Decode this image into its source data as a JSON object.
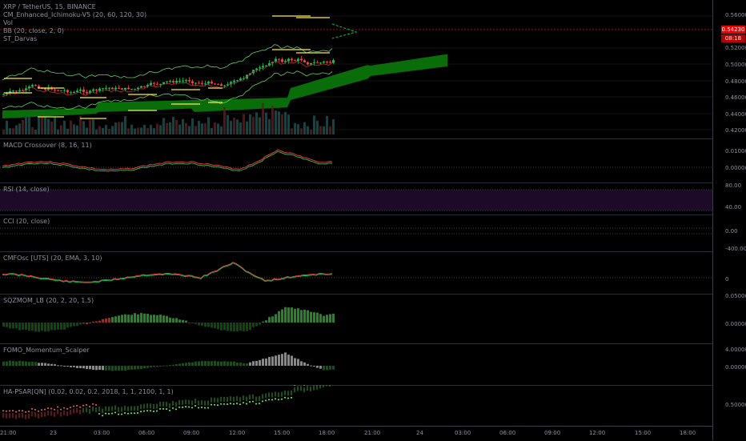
{
  "header": {
    "symbol_line": "XRP / TetherUS, 15, BINANCE",
    "ind_ichimoku": "CM_Enhanced_Ichimoku-V5 (20, 60, 120, 30)",
    "ind_vol": "Vol",
    "ind_bb": "BB (20, close, 2, 0)",
    "ind_darvas": "ST_Darvas"
  },
  "price_axis": {
    "ticks": [
      "0.56000",
      "0.54230",
      "0.52000",
      "0.50000",
      "0.48000",
      "0.46000",
      "0.44000",
      "0.42000"
    ],
    "last_price": "0.54230",
    "countdown": "08:18"
  },
  "panes": {
    "macd": {
      "label": "MACD Crossover (8, 16, 11)",
      "ticks": [
        "0.01000",
        "0.00000"
      ]
    },
    "rsi": {
      "label": "RSI (14, close)",
      "ticks": [
        "80.00",
        "40.00"
      ]
    },
    "cci": {
      "label": "CCI (20, close)",
      "ticks": [
        "0.00",
        "-400.00"
      ]
    },
    "cmf": {
      "label": "CMFOsc [UTS] (20, EMA, 3, 10)",
      "ticks": [
        "0"
      ]
    },
    "sqz": {
      "label": "SQZMOM_LB (20, 2, 20, 1.5)",
      "ticks": [
        "0.05000",
        "0.00000"
      ]
    },
    "fomo": {
      "label": "FOMO_Momentum_Scalper",
      "ticks": [
        "4.00000",
        "0.00000"
      ]
    },
    "psar": {
      "label": "HA-PSAR[QN] (0.02, 0.02, 0.2, 2018, 1, 1, 2100, 1, 1)",
      "ticks": [
        "0.50000"
      ]
    }
  },
  "time_axis": [
    "21:00",
    "23",
    "03:00",
    "06:00",
    "09:00",
    "12:00",
    "15:00",
    "18:00",
    "21:00",
    "24",
    "03:00",
    "06:00",
    "09:00",
    "12:00",
    "15:00",
    "18:00"
  ],
  "colors": {
    "up": "#00c853",
    "down": "#ff3b3b",
    "cloud": "#0a7a0a",
    "purple": "#b040e0",
    "macd": "#ff4040",
    "signal": "#40c060",
    "bb": "#66cc66",
    "yellow": "#ffee33"
  }
}
